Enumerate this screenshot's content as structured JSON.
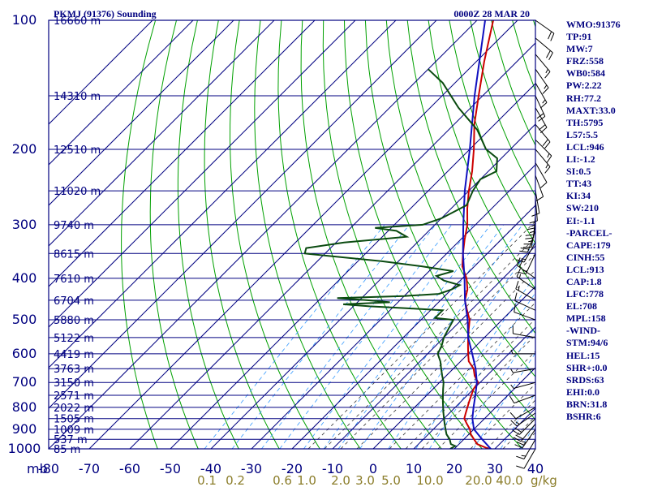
{
  "header": {
    "station": "PKMJ (91376) Sounding",
    "time": "0000Z 28 MAR 20"
  },
  "chart_data": {
    "type": "line",
    "chart_kind": "Skew-T log-P sounding",
    "y_axis": {
      "unit_label": "mb",
      "scale": "log",
      "range": [
        1000,
        100
      ],
      "ticks": [
        100,
        200,
        300,
        400,
        500,
        600,
        700,
        800,
        900,
        1000
      ]
    },
    "x_axis": {
      "range": [
        -80,
        40
      ],
      "ticks": [
        -80,
        -70,
        -60,
        -50,
        -40,
        -30,
        -20,
        -10,
        0,
        10,
        20,
        30,
        40
      ],
      "tick_labels": [
        "-80",
        "-70",
        "-60",
        "-50",
        "-40",
        "-30",
        "-20",
        "-10",
        "0",
        "10",
        "20",
        "30",
        "40"
      ]
    },
    "heights": [
      {
        "p": 100,
        "label": "16660 m"
      },
      {
        "p": 150,
        "label": "14310 m"
      },
      {
        "p": 200,
        "label": "12510 m"
      },
      {
        "p": 250,
        "label": "11020 m"
      },
      {
        "p": 300,
        "label": "9740 m"
      },
      {
        "p": 350,
        "label": "8615 m"
      },
      {
        "p": 400,
        "label": "7610 m"
      },
      {
        "p": 450,
        "label": "6704 m"
      },
      {
        "p": 500,
        "label": "5880 m"
      },
      {
        "p": 550,
        "label": "5122 m"
      },
      {
        "p": 600,
        "label": "4419 m"
      },
      {
        "p": 650,
        "label": "3763 m"
      },
      {
        "p": 700,
        "label": "3150 m"
      },
      {
        "p": 750,
        "label": "2571 m"
      },
      {
        "p": 800,
        "label": "2022 m"
      },
      {
        "p": 850,
        "label": "1505 m"
      },
      {
        "p": 900,
        "label": "1009 m"
      },
      {
        "p": 950,
        "label": "537 m"
      },
      {
        "p": 1000,
        "label": "85 m"
      }
    ],
    "mixing_ratio_labels": [
      "0.1",
      "0.2",
      "0.6",
      "1.0",
      "2.0",
      "3.0",
      "5.0",
      "10.0",
      "20.0",
      "40.0"
    ],
    "mixing_ratio_unit": "g/kg",
    "series": [
      {
        "color": "#cc0000",
        "points": [
          [
            1000,
            28.5
          ],
          [
            975,
            24.5
          ],
          [
            950,
            22.5
          ],
          [
            925,
            20.5
          ],
          [
            900,
            19
          ],
          [
            875,
            17
          ],
          [
            850,
            15
          ],
          [
            825,
            14
          ],
          [
            800,
            13
          ],
          [
            775,
            12
          ],
          [
            750,
            11
          ],
          [
            725,
            10
          ],
          [
            700,
            9.5
          ],
          [
            675,
            7
          ],
          [
            650,
            5
          ],
          [
            625,
            2
          ],
          [
            600,
            0
          ],
          [
            575,
            -2
          ],
          [
            550,
            -4
          ],
          [
            525,
            -6
          ],
          [
            500,
            -8
          ],
          [
            475,
            -11
          ],
          [
            450,
            -14
          ],
          [
            425,
            -16
          ],
          [
            400,
            -19
          ],
          [
            375,
            -23
          ],
          [
            350,
            -26
          ],
          [
            325,
            -29
          ],
          [
            300,
            -32
          ],
          [
            275,
            -36
          ],
          [
            250,
            -40
          ],
          [
            225,
            -44
          ],
          [
            200,
            -49
          ],
          [
            175,
            -55
          ],
          [
            150,
            -61
          ],
          [
            125,
            -68
          ],
          [
            100,
            -76
          ]
        ]
      },
      {
        "color": "#1010c0",
        "points": [
          [
            1000,
            29
          ],
          [
            950,
            24.5
          ],
          [
            900,
            20
          ],
          [
            850,
            17
          ],
          [
            800,
            14.5
          ],
          [
            750,
            12
          ],
          [
            700,
            9.2
          ],
          [
            650,
            5.5
          ],
          [
            600,
            1
          ],
          [
            550,
            -4
          ],
          [
            500,
            -8.5
          ],
          [
            450,
            -14
          ],
          [
            400,
            -19.5
          ],
          [
            350,
            -26
          ],
          [
            300,
            -33
          ],
          [
            250,
            -41
          ],
          [
            200,
            -50
          ],
          [
            150,
            -62
          ],
          [
            100,
            -78
          ]
        ]
      },
      {
        "color": "#0a4a10",
        "points": [
          [
            1000,
            19
          ],
          [
            985,
            19.5
          ],
          [
            975,
            18
          ],
          [
            950,
            16.5
          ],
          [
            925,
            14.5
          ],
          [
            900,
            13
          ],
          [
            875,
            11.5
          ],
          [
            850,
            10
          ],
          [
            825,
            8.5
          ],
          [
            800,
            7
          ],
          [
            775,
            5.5
          ],
          [
            750,
            4
          ],
          [
            725,
            2.5
          ],
          [
            700,
            1
          ],
          [
            675,
            -1
          ],
          [
            650,
            -3
          ],
          [
            625,
            -5
          ],
          [
            600,
            -7.5
          ],
          [
            575,
            -8.5
          ],
          [
            550,
            -10
          ],
          [
            525,
            -11
          ],
          [
            500,
            -12
          ],
          [
            495,
            -17
          ],
          [
            485,
            -17
          ],
          [
            475,
            -17
          ],
          [
            470,
            -26
          ],
          [
            465,
            -36
          ],
          [
            460,
            -43
          ],
          [
            455,
            -32
          ],
          [
            450,
            -38
          ],
          [
            445,
            -46
          ],
          [
            440,
            -30
          ],
          [
            435,
            -22
          ],
          [
            425,
            -20
          ],
          [
            415,
            -19
          ],
          [
            405,
            -24
          ],
          [
            395,
            -27
          ],
          [
            385,
            -24
          ],
          [
            375,
            -33
          ],
          [
            365,
            -44
          ],
          [
            350,
            -65
          ],
          [
            340,
            -66
          ],
          [
            330,
            -58
          ],
          [
            325,
            -51
          ],
          [
            320,
            -44
          ],
          [
            310,
            -48
          ],
          [
            305,
            -54
          ],
          [
            300,
            -43
          ],
          [
            290,
            -40
          ],
          [
            270,
            -37
          ],
          [
            250,
            -39
          ],
          [
            235,
            -40
          ],
          [
            225,
            -38
          ],
          [
            210,
            -41
          ],
          [
            200,
            -46
          ],
          [
            180,
            -53
          ],
          [
            160,
            -63
          ],
          [
            140,
            -73
          ],
          [
            130,
            -80
          ]
        ]
      }
    ],
    "wind_barbs": [
      {
        "p": 1000,
        "dir": 210,
        "spd": 10
      },
      {
        "p": 950,
        "dir": 210,
        "spd": 15
      },
      {
        "p": 900,
        "dir": 215,
        "spd": 25
      },
      {
        "p": 875,
        "dir": 220,
        "spd": 20
      },
      {
        "p": 850,
        "dir": 225,
        "spd": 20
      },
      {
        "p": 825,
        "dir": 235,
        "spd": 15
      },
      {
        "p": 800,
        "dir": 240,
        "spd": 10
      },
      {
        "p": 750,
        "dir": 250,
        "spd": 10
      },
      {
        "p": 700,
        "dir": 255,
        "spd": 5
      },
      {
        "p": 650,
        "dir": 260,
        "spd": 5
      },
      {
        "p": 600,
        "dir": 270,
        "spd": 5
      },
      {
        "p": 550,
        "dir": 280,
        "spd": 10
      },
      {
        "p": 500,
        "dir": 290,
        "spd": 10
      },
      {
        "p": 475,
        "dir": 295,
        "spd": 10
      },
      {
        "p": 450,
        "dir": 300,
        "spd": 15
      },
      {
        "p": 425,
        "dir": 305,
        "spd": 15
      },
      {
        "p": 400,
        "dir": 305,
        "spd": 20
      },
      {
        "p": 350,
        "dir": 205,
        "spd": 15
      },
      {
        "p": 330,
        "dir": 210,
        "spd": 15
      },
      {
        "p": 310,
        "dir": 200,
        "spd": 20
      },
      {
        "p": 300,
        "dir": 190,
        "spd": 25
      },
      {
        "p": 285,
        "dir": 185,
        "spd": 25
      },
      {
        "p": 270,
        "dir": 180,
        "spd": 15
      },
      {
        "p": 260,
        "dir": 175,
        "spd": 10
      },
      {
        "p": 250,
        "dir": 170,
        "spd": 10
      },
      {
        "p": 230,
        "dir": 160,
        "spd": 10
      },
      {
        "p": 215,
        "dir": 150,
        "spd": 10
      },
      {
        "p": 200,
        "dir": 140,
        "spd": 15
      },
      {
        "p": 190,
        "dir": 135,
        "spd": 15
      },
      {
        "p": 175,
        "dir": 140,
        "spd": 20
      },
      {
        "p": 160,
        "dir": 150,
        "spd": 20
      },
      {
        "p": 150,
        "dir": 155,
        "spd": 20
      },
      {
        "p": 140,
        "dir": 150,
        "spd": 15
      },
      {
        "p": 130,
        "dir": 145,
        "spd": 15
      },
      {
        "p": 120,
        "dir": 140,
        "spd": 15
      },
      {
        "p": 110,
        "dir": 130,
        "spd": 20
      },
      {
        "p": 100,
        "dir": 125,
        "spd": 20
      }
    ],
    "grid": true
  },
  "indices": [
    "WMO:91376",
    "TP:91",
    "MW:7",
    "FRZ:558",
    "WB0:584",
    "PW:2.22",
    "RH:77.2",
    "MAXT:33.0",
    "TH:5795",
    "L57:5.5",
    "LCL:946",
    "LI:-1.2",
    "SI:0.5",
    "TT:43",
    "KI:34",
    "SW:210",
    "EI:-1.1",
    "-PARCEL-",
    "CAPE:179",
    "CINH:55",
    "LCL:913",
    "CAP:1.8",
    "LFC:778",
    "EL:708",
    "MPL:158",
    "-WIND-",
    "STM:94/6",
    "HEL:15",
    "SHR+:0.0",
    "SRDS:63",
    "EHI:0.0",
    "BRN:31.8",
    "BSHR:6"
  ],
  "colors": {
    "axes": "#000080",
    "isotherm": "#000080",
    "isobar": "#000080",
    "dry_adiabat": "#00a000",
    "moist_adiabat": "#333333",
    "mixing_ratio": "#3399ff",
    "mixing_label": "#8b7d2a",
    "barb": "#000000"
  }
}
